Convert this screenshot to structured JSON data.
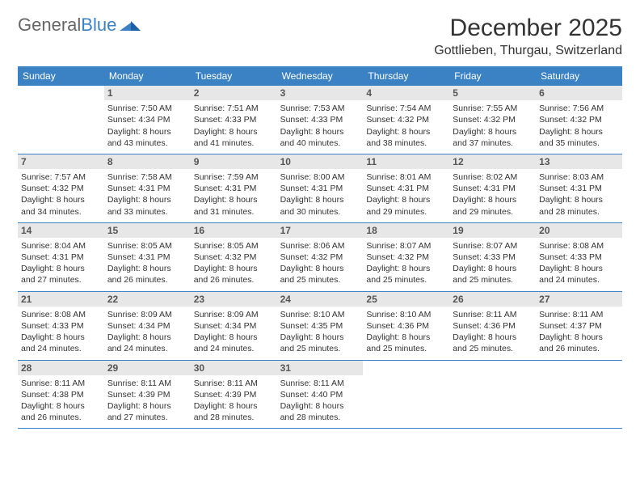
{
  "logo": {
    "text1": "General",
    "text2": "Blue"
  },
  "title": "December 2025",
  "location": "Gottlieben, Thurgau, Switzerland",
  "colors": {
    "headerBar": "#3b82c4",
    "dayNumBg": "#e7e7e7",
    "text": "#333333"
  },
  "dayNames": [
    "Sunday",
    "Monday",
    "Tuesday",
    "Wednesday",
    "Thursday",
    "Friday",
    "Saturday"
  ],
  "weeks": [
    [
      {
        "n": "",
        "sr": "",
        "ss": "",
        "dl": ""
      },
      {
        "n": "1",
        "sr": "Sunrise: 7:50 AM",
        "ss": "Sunset: 4:34 PM",
        "dl": "Daylight: 8 hours and 43 minutes."
      },
      {
        "n": "2",
        "sr": "Sunrise: 7:51 AM",
        "ss": "Sunset: 4:33 PM",
        "dl": "Daylight: 8 hours and 41 minutes."
      },
      {
        "n": "3",
        "sr": "Sunrise: 7:53 AM",
        "ss": "Sunset: 4:33 PM",
        "dl": "Daylight: 8 hours and 40 minutes."
      },
      {
        "n": "4",
        "sr": "Sunrise: 7:54 AM",
        "ss": "Sunset: 4:32 PM",
        "dl": "Daylight: 8 hours and 38 minutes."
      },
      {
        "n": "5",
        "sr": "Sunrise: 7:55 AM",
        "ss": "Sunset: 4:32 PM",
        "dl": "Daylight: 8 hours and 37 minutes."
      },
      {
        "n": "6",
        "sr": "Sunrise: 7:56 AM",
        "ss": "Sunset: 4:32 PM",
        "dl": "Daylight: 8 hours and 35 minutes."
      }
    ],
    [
      {
        "n": "7",
        "sr": "Sunrise: 7:57 AM",
        "ss": "Sunset: 4:32 PM",
        "dl": "Daylight: 8 hours and 34 minutes."
      },
      {
        "n": "8",
        "sr": "Sunrise: 7:58 AM",
        "ss": "Sunset: 4:31 PM",
        "dl": "Daylight: 8 hours and 33 minutes."
      },
      {
        "n": "9",
        "sr": "Sunrise: 7:59 AM",
        "ss": "Sunset: 4:31 PM",
        "dl": "Daylight: 8 hours and 31 minutes."
      },
      {
        "n": "10",
        "sr": "Sunrise: 8:00 AM",
        "ss": "Sunset: 4:31 PM",
        "dl": "Daylight: 8 hours and 30 minutes."
      },
      {
        "n": "11",
        "sr": "Sunrise: 8:01 AM",
        "ss": "Sunset: 4:31 PM",
        "dl": "Daylight: 8 hours and 29 minutes."
      },
      {
        "n": "12",
        "sr": "Sunrise: 8:02 AM",
        "ss": "Sunset: 4:31 PM",
        "dl": "Daylight: 8 hours and 29 minutes."
      },
      {
        "n": "13",
        "sr": "Sunrise: 8:03 AM",
        "ss": "Sunset: 4:31 PM",
        "dl": "Daylight: 8 hours and 28 minutes."
      }
    ],
    [
      {
        "n": "14",
        "sr": "Sunrise: 8:04 AM",
        "ss": "Sunset: 4:31 PM",
        "dl": "Daylight: 8 hours and 27 minutes."
      },
      {
        "n": "15",
        "sr": "Sunrise: 8:05 AM",
        "ss": "Sunset: 4:31 PM",
        "dl": "Daylight: 8 hours and 26 minutes."
      },
      {
        "n": "16",
        "sr": "Sunrise: 8:05 AM",
        "ss": "Sunset: 4:32 PM",
        "dl": "Daylight: 8 hours and 26 minutes."
      },
      {
        "n": "17",
        "sr": "Sunrise: 8:06 AM",
        "ss": "Sunset: 4:32 PM",
        "dl": "Daylight: 8 hours and 25 minutes."
      },
      {
        "n": "18",
        "sr": "Sunrise: 8:07 AM",
        "ss": "Sunset: 4:32 PM",
        "dl": "Daylight: 8 hours and 25 minutes."
      },
      {
        "n": "19",
        "sr": "Sunrise: 8:07 AM",
        "ss": "Sunset: 4:33 PM",
        "dl": "Daylight: 8 hours and 25 minutes."
      },
      {
        "n": "20",
        "sr": "Sunrise: 8:08 AM",
        "ss": "Sunset: 4:33 PM",
        "dl": "Daylight: 8 hours and 24 minutes."
      }
    ],
    [
      {
        "n": "21",
        "sr": "Sunrise: 8:08 AM",
        "ss": "Sunset: 4:33 PM",
        "dl": "Daylight: 8 hours and 24 minutes."
      },
      {
        "n": "22",
        "sr": "Sunrise: 8:09 AM",
        "ss": "Sunset: 4:34 PM",
        "dl": "Daylight: 8 hours and 24 minutes."
      },
      {
        "n": "23",
        "sr": "Sunrise: 8:09 AM",
        "ss": "Sunset: 4:34 PM",
        "dl": "Daylight: 8 hours and 24 minutes."
      },
      {
        "n": "24",
        "sr": "Sunrise: 8:10 AM",
        "ss": "Sunset: 4:35 PM",
        "dl": "Daylight: 8 hours and 25 minutes."
      },
      {
        "n": "25",
        "sr": "Sunrise: 8:10 AM",
        "ss": "Sunset: 4:36 PM",
        "dl": "Daylight: 8 hours and 25 minutes."
      },
      {
        "n": "26",
        "sr": "Sunrise: 8:11 AM",
        "ss": "Sunset: 4:36 PM",
        "dl": "Daylight: 8 hours and 25 minutes."
      },
      {
        "n": "27",
        "sr": "Sunrise: 8:11 AM",
        "ss": "Sunset: 4:37 PM",
        "dl": "Daylight: 8 hours and 26 minutes."
      }
    ],
    [
      {
        "n": "28",
        "sr": "Sunrise: 8:11 AM",
        "ss": "Sunset: 4:38 PM",
        "dl": "Daylight: 8 hours and 26 minutes."
      },
      {
        "n": "29",
        "sr": "Sunrise: 8:11 AM",
        "ss": "Sunset: 4:39 PM",
        "dl": "Daylight: 8 hours and 27 minutes."
      },
      {
        "n": "30",
        "sr": "Sunrise: 8:11 AM",
        "ss": "Sunset: 4:39 PM",
        "dl": "Daylight: 8 hours and 28 minutes."
      },
      {
        "n": "31",
        "sr": "Sunrise: 8:11 AM",
        "ss": "Sunset: 4:40 PM",
        "dl": "Daylight: 8 hours and 28 minutes."
      },
      {
        "n": "",
        "sr": "",
        "ss": "",
        "dl": ""
      },
      {
        "n": "",
        "sr": "",
        "ss": "",
        "dl": ""
      },
      {
        "n": "",
        "sr": "",
        "ss": "",
        "dl": ""
      }
    ]
  ]
}
